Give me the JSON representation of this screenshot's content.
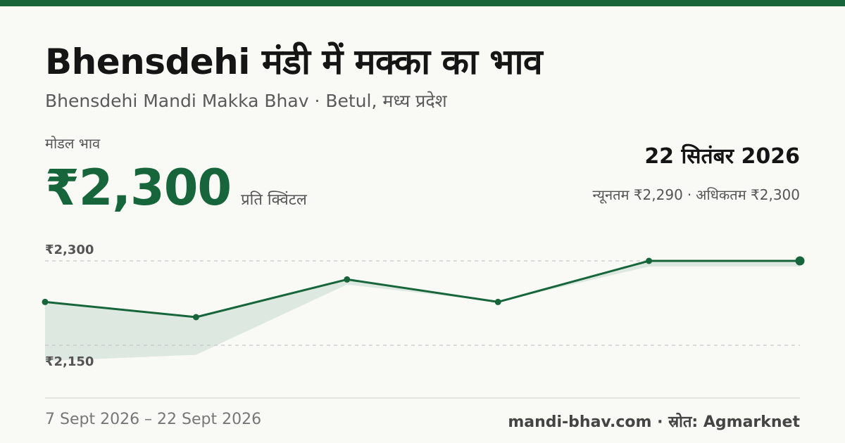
{
  "header": {
    "title": "Bhensdehi मंडी में मक्का का भाव",
    "subtitle": "Bhensdehi Mandi Makka Bhav · Betul, मध्य प्रदेश"
  },
  "price": {
    "label": "मोडल भाव",
    "value": "₹2,300",
    "unit": "प्रति क्विंटल"
  },
  "summary": {
    "date": "22 सितंबर 2026",
    "min_text": "न्यूनतम ₹2,290",
    "separator": "·",
    "max_text": "अधिकतम ₹2,300"
  },
  "footer": {
    "date_range": "7 Sept 2026 – 22 Sept 2026",
    "source": "mandi-bhav.com · स्रोत: Agmarknet"
  },
  "colors": {
    "accent": "#17653a",
    "band": "#dde8e0",
    "grid": "#c8c8c8"
  },
  "chart_data": {
    "type": "line",
    "series": [
      {
        "values": [
          2227,
          2200,
          2267,
          2227,
          2300,
          2300
        ],
        "min_values": [
          2122,
          2133,
          2258,
          2227,
          2290,
          2290
        ],
        "max_values": [
          2227,
          2200,
          2267,
          2227,
          2300,
          2300
        ]
      }
    ],
    "ylim": [
      2150,
      2300
    ],
    "gridlines": [
      {
        "value": 2150,
        "label": "₹2,150"
      },
      {
        "value": 2300,
        "label": "₹2,300"
      }
    ],
    "xlabel": "",
    "ylabel": ""
  }
}
